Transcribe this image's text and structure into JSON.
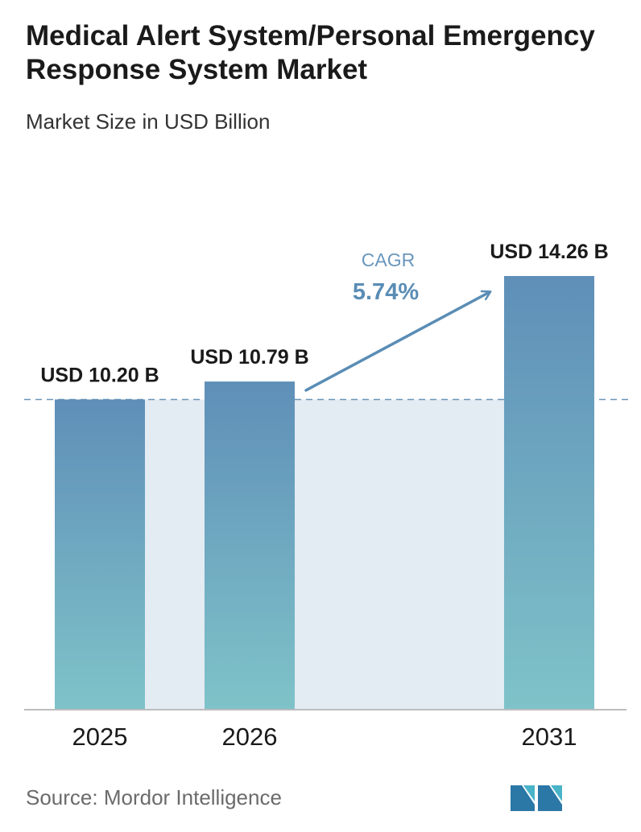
{
  "header": {
    "title": "Medical Alert System/Personal Emergency Response System Market",
    "subtitle": "Market Size in USD Billion"
  },
  "chart_data": {
    "type": "bar",
    "title": "Medical Alert System/Personal Emergency Response System Market",
    "subtitle": "Market Size in USD Billion",
    "categories": [
      "2025",
      "2026",
      "2031"
    ],
    "values": [
      10.2,
      10.79,
      14.26
    ],
    "value_labels": [
      "USD 10.20 B",
      "USD 10.79 B",
      "USD 14.26 B"
    ],
    "unit": "USD Billion",
    "xlabel": "",
    "ylabel": "",
    "ylim": [
      0,
      14.26
    ],
    "grid": false,
    "reference_line": 10.2,
    "annotation": {
      "label": "CAGR",
      "value": "5.74%"
    },
    "colors": {
      "bar_top": "#5f8fb8",
      "bar_bottom": "#7fc3c9",
      "band": "#e3ebf3",
      "accent": "#5a8db5"
    }
  },
  "footer": {
    "source": "Source:  Mordor Intelligence",
    "logo_icon": "mordor-intelligence-logo-icon"
  }
}
